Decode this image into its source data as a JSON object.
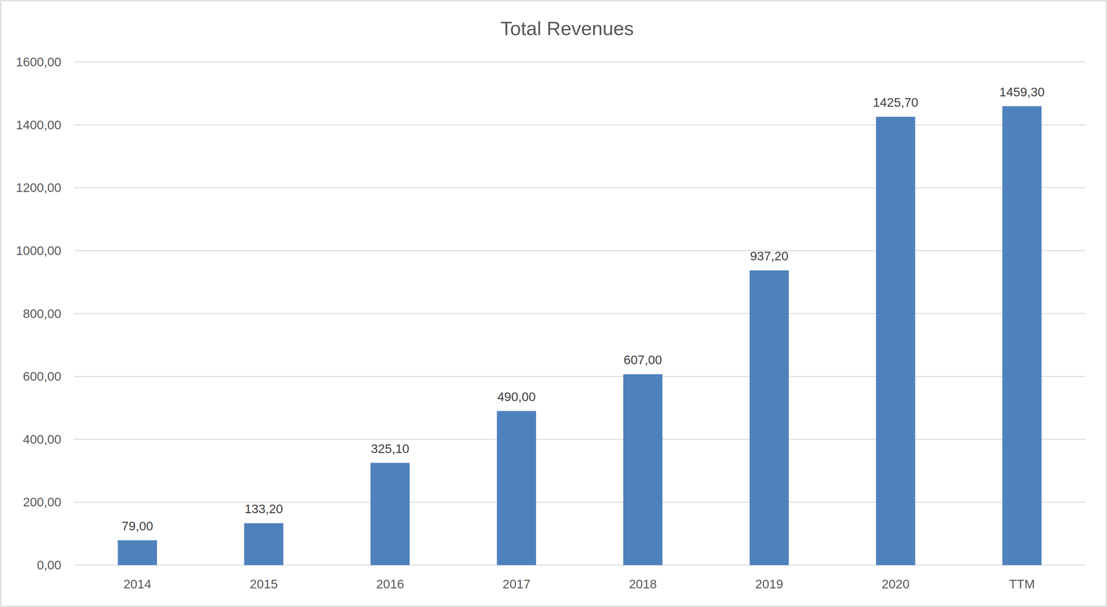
{
  "chart_data": {
    "type": "bar",
    "title": "Total Revenues",
    "categories": [
      "2014",
      "2015",
      "2016",
      "2017",
      "2018",
      "2019",
      "2020",
      "TTM"
    ],
    "values": [
      79.0,
      133.2,
      325.1,
      490.0,
      607.0,
      937.2,
      1425.7,
      1459.3
    ],
    "value_labels": [
      "79,00",
      "133,20",
      "325,10",
      "490,00",
      "607,00",
      "937,20",
      "1425,70",
      "1459,30"
    ],
    "color": "#4f81bd",
    "ylim": [
      0,
      1600
    ],
    "yticks": [
      {
        "value": 0,
        "label": "0,00"
      },
      {
        "value": 200,
        "label": "200,00"
      },
      {
        "value": 400,
        "label": "400,00"
      },
      {
        "value": 600,
        "label": "600,00"
      },
      {
        "value": 800,
        "label": "800,00"
      },
      {
        "value": 1000,
        "label": "1000,00"
      },
      {
        "value": 1200,
        "label": "1200,00"
      },
      {
        "value": 1400,
        "label": "1400,00"
      },
      {
        "value": 1600,
        "label": "1600,00"
      }
    ],
    "grid": true,
    "data_labels": true
  }
}
